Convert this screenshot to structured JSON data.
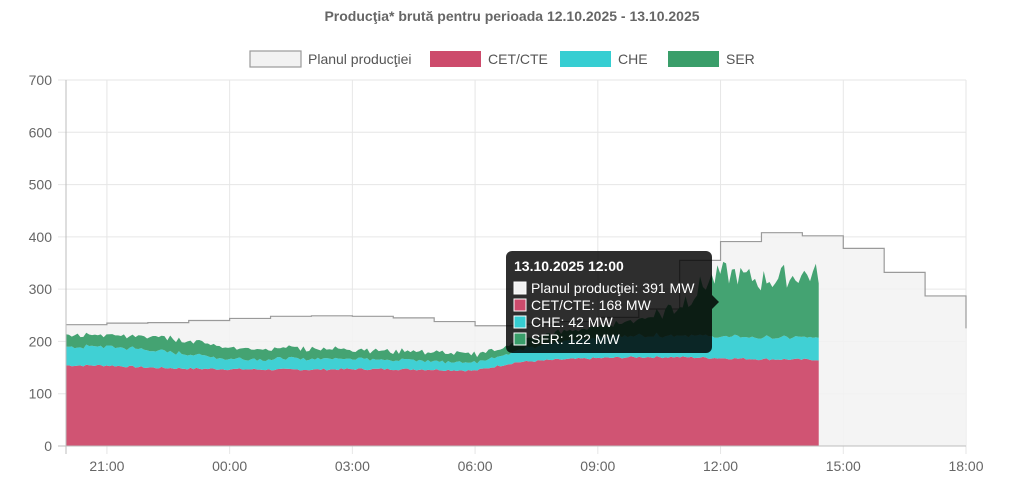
{
  "chart_data": {
    "type": "area",
    "title": "Producţia* brută pentru perioada 12.10.2025 - 13.10.2025",
    "ylim": [
      0,
      700
    ],
    "y_ticks": [
      0,
      100,
      200,
      300,
      400,
      500,
      600,
      700
    ],
    "x_range_hours": [
      20.0,
      42.0
    ],
    "x_ticks": [
      {
        "h": 21,
        "label": "21:00"
      },
      {
        "h": 24,
        "label": "00:00"
      },
      {
        "h": 27,
        "label": "03:00"
      },
      {
        "h": 30,
        "label": "06:00"
      },
      {
        "h": 33,
        "label": "09:00"
      },
      {
        "h": 36,
        "label": "12:00"
      },
      {
        "h": 39,
        "label": "15:00"
      },
      {
        "h": 42,
        "label": "18:00"
      }
    ],
    "grid": true,
    "legend_position": "top-center",
    "series": [
      {
        "name": "Planul producţiei",
        "color": "#f2f2f2",
        "border": "#9a9a9a",
        "kind": "step",
        "points": [
          [
            20.0,
            232
          ],
          [
            21.0,
            235
          ],
          [
            22.0,
            236
          ],
          [
            23.0,
            240
          ],
          [
            24.0,
            244
          ],
          [
            25.0,
            248
          ],
          [
            26.0,
            249
          ],
          [
            27.0,
            248
          ],
          [
            28.0,
            245
          ],
          [
            29.0,
            238
          ],
          [
            30.0,
            230
          ],
          [
            31.0,
            233
          ],
          [
            32.0,
            238
          ],
          [
            33.0,
            246
          ],
          [
            34.0,
            262
          ],
          [
            35.0,
            355
          ],
          [
            36.0,
            391
          ],
          [
            37.0,
            408
          ],
          [
            38.0,
            402
          ],
          [
            39.0,
            378
          ],
          [
            40.0,
            332
          ],
          [
            41.0,
            287
          ],
          [
            42.0,
            225
          ]
        ]
      },
      {
        "name": "CET/CTE",
        "color": "#cd4b6c",
        "kind": "stacked",
        "points": [
          [
            20.0,
            154
          ],
          [
            21.0,
            154
          ],
          [
            22.0,
            150
          ],
          [
            23.0,
            148
          ],
          [
            24.0,
            147
          ],
          [
            25.0,
            146
          ],
          [
            26.0,
            146
          ],
          [
            27.0,
            147
          ],
          [
            28.0,
            147
          ],
          [
            29.0,
            146
          ],
          [
            30.0,
            144
          ],
          [
            31.0,
            160
          ],
          [
            32.0,
            165
          ],
          [
            33.0,
            168
          ],
          [
            34.0,
            170
          ],
          [
            35.0,
            170
          ],
          [
            36.0,
            168
          ],
          [
            37.0,
            166
          ],
          [
            38.4,
            165
          ]
        ]
      },
      {
        "name": "CHE",
        "color": "#36ced2",
        "kind": "stacked",
        "points": [
          [
            20.0,
            35
          ],
          [
            21.0,
            37
          ],
          [
            22.0,
            34
          ],
          [
            23.0,
            28
          ],
          [
            24.0,
            20
          ],
          [
            25.0,
            20
          ],
          [
            26.0,
            21
          ],
          [
            27.0,
            21
          ],
          [
            28.0,
            19
          ],
          [
            29.0,
            17
          ],
          [
            30.0,
            16
          ],
          [
            31.0,
            22
          ],
          [
            32.0,
            33
          ],
          [
            33.0,
            40
          ],
          [
            34.0,
            42
          ],
          [
            35.0,
            42
          ],
          [
            36.0,
            42
          ],
          [
            37.0,
            42
          ],
          [
            38.4,
            42
          ]
        ]
      },
      {
        "name": "SER",
        "color": "#3a9e6a",
        "kind": "stacked",
        "points": [
          [
            20.0,
            22
          ],
          [
            21.0,
            24
          ],
          [
            22.0,
            26
          ],
          [
            23.0,
            26
          ],
          [
            24.0,
            20
          ],
          [
            25.0,
            20
          ],
          [
            26.0,
            20
          ],
          [
            27.0,
            18
          ],
          [
            28.0,
            17
          ],
          [
            29.0,
            17
          ],
          [
            30.0,
            16
          ],
          [
            31.0,
            15
          ],
          [
            32.0,
            18
          ],
          [
            33.0,
            20
          ],
          [
            34.0,
            30
          ],
          [
            35.0,
            60
          ],
          [
            36.0,
            122
          ],
          [
            37.0,
            110
          ],
          [
            38.4,
            122
          ]
        ]
      }
    ],
    "tooltip": {
      "title": "13.10.2025 12:00",
      "lines": [
        {
          "text": "Planul producţiei: 391 MW",
          "color": "#f2f2f2"
        },
        {
          "text": "CET/CTE: 168 MW",
          "color": "#cd4b6c"
        },
        {
          "text": "CHE: 42 MW",
          "color": "#36ced2"
        },
        {
          "text": "SER: 122 MW",
          "color": "#3a9e6a"
        }
      ]
    }
  }
}
